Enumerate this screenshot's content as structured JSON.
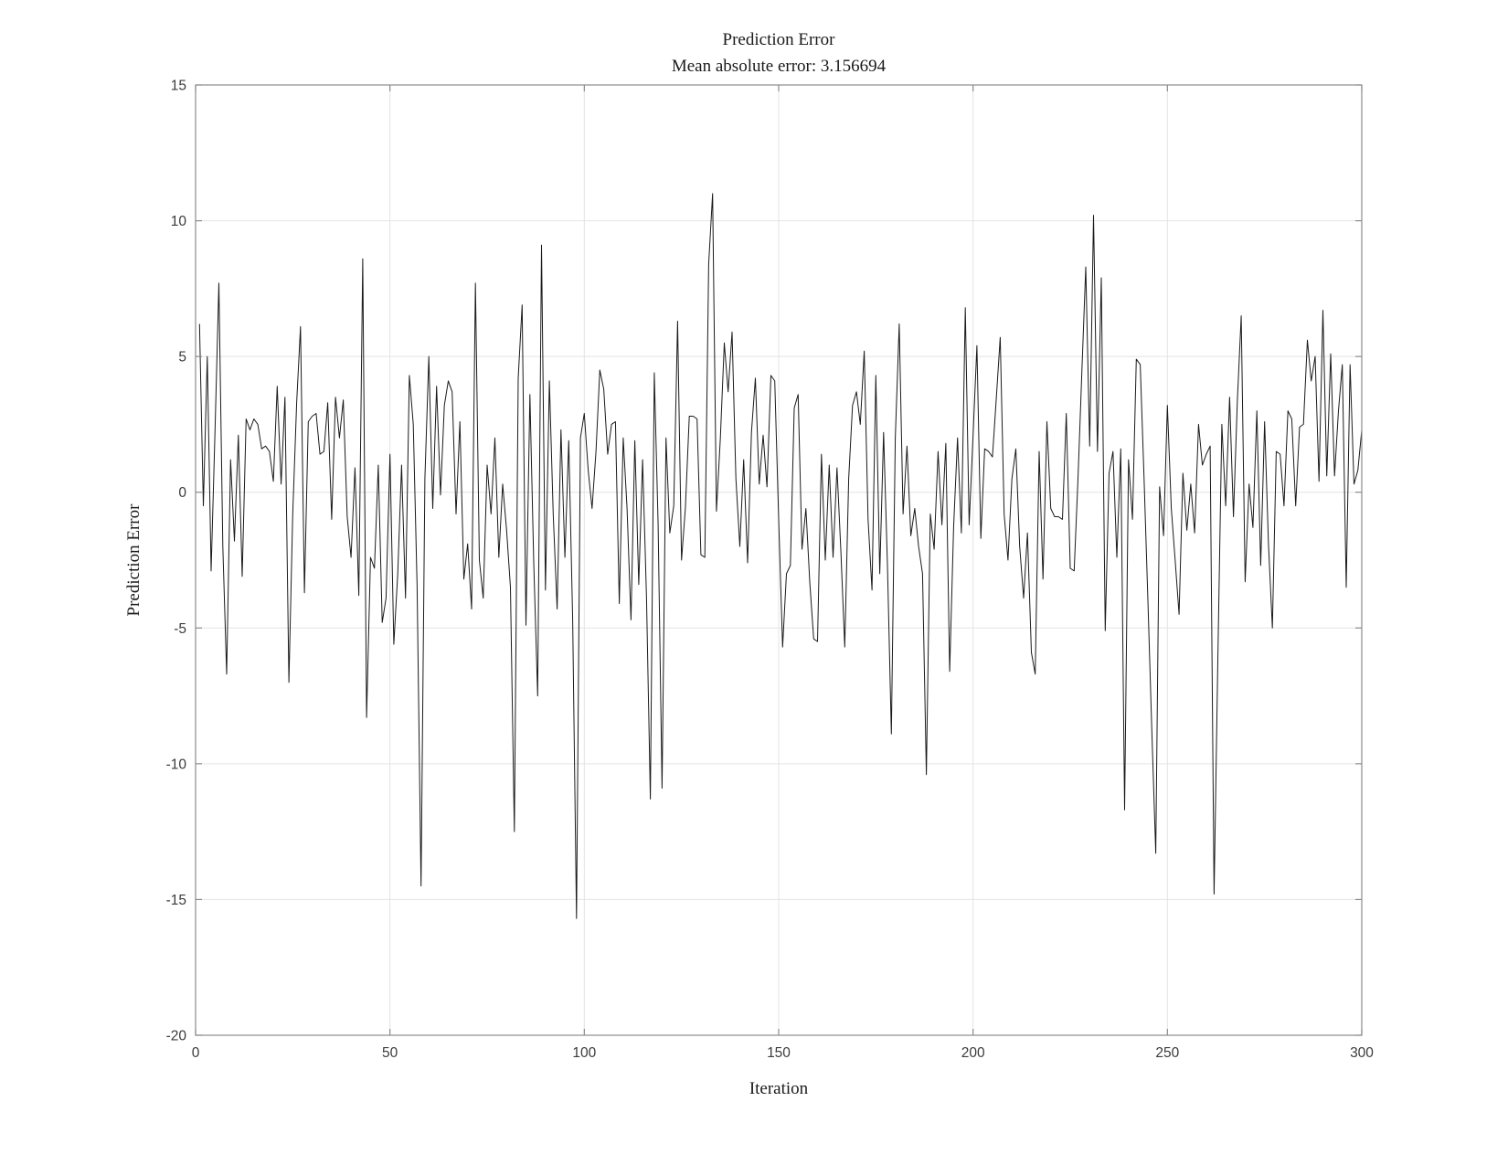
{
  "figure": {
    "background": "#ffffff"
  },
  "chart_data": {
    "type": "line",
    "title": "Prediction Error",
    "subtitle": "Mean absolute error: 3.156694",
    "xlabel": "Iteration",
    "ylabel": "Prediction Error",
    "xlim": [
      0,
      300
    ],
    "ylim": [
      -20,
      15
    ],
    "x_ticks": [
      0,
      50,
      100,
      150,
      200,
      250,
      300
    ],
    "y_ticks": [
      -20,
      -15,
      -10,
      -5,
      0,
      5,
      10,
      15
    ],
    "grid": true,
    "legend": null,
    "line_color": "#1a1a1a",
    "grid_color": "#e4e4e4",
    "axis_color": "#8c8c8c",
    "text_color": "#3b3b3b",
    "x_start": 1,
    "values": [
      6.2,
      -0.5,
      5.0,
      -2.9,
      2.3,
      7.7,
      -2.0,
      -6.7,
      1.2,
      -1.8,
      2.1,
      -3.1,
      2.7,
      2.3,
      2.7,
      2.5,
      1.6,
      1.7,
      1.5,
      0.4,
      3.9,
      0.3,
      3.5,
      -7.0,
      -0.8,
      3.3,
      6.1,
      -3.7,
      2.6,
      2.8,
      2.9,
      1.4,
      1.5,
      3.3,
      -1.0,
      3.5,
      2.0,
      3.4,
      -0.9,
      -2.4,
      0.9,
      -3.8,
      8.6,
      -8.3,
      -2.4,
      -2.8,
      1.0,
      -4.8,
      -3.9,
      1.4,
      -5.6,
      -3.0,
      1.0,
      -3.9,
      4.3,
      2.5,
      -3.5,
      -14.5,
      0.5,
      5.0,
      -0.6,
      3.9,
      -0.1,
      3.2,
      4.1,
      3.7,
      -0.8,
      2.6,
      -3.2,
      -1.9,
      -4.3,
      7.7,
      -2.5,
      -3.9,
      1.0,
      -0.8,
      2.0,
      -2.4,
      0.3,
      -1.4,
      -3.5,
      -12.5,
      4.2,
      6.9,
      -4.9,
      3.6,
      -2.6,
      -7.5,
      9.1,
      -3.6,
      4.1,
      -0.8,
      -4.3,
      2.3,
      -2.4,
      1.9,
      -4.7,
      -15.7,
      2.0,
      2.9,
      0.8,
      -0.6,
      1.5,
      4.5,
      3.8,
      1.4,
      2.5,
      2.6,
      -4.1,
      2.0,
      -0.6,
      -4.7,
      1.9,
      -3.4,
      1.2,
      -3.9,
      -11.3,
      4.4,
      -1.2,
      -10.9,
      2.0,
      -1.5,
      -0.5,
      6.3,
      -2.5,
      -0.6,
      2.8,
      2.8,
      2.7,
      -2.3,
      -2.4,
      8.4,
      11.0,
      -0.7,
      2.0,
      5.5,
      3.7,
      5.9,
      0.5,
      -2.0,
      1.2,
      -2.6,
      2.2,
      4.2,
      0.3,
      2.1,
      0.2,
      4.3,
      4.1,
      -1.0,
      -5.7,
      -3.0,
      -2.7,
      3.1,
      3.6,
      -2.1,
      -0.6,
      -3.3,
      -5.4,
      -5.5,
      1.4,
      -2.5,
      1.0,
      -2.4,
      0.9,
      -2.2,
      -5.7,
      0.5,
      3.2,
      3.7,
      2.5,
      5.2,
      -1.0,
      -3.6,
      4.3,
      -3.0,
      2.2,
      -2.8,
      -8.9,
      2.0,
      6.2,
      -0.8,
      1.7,
      -1.6,
      -0.6,
      -2.0,
      -3.0,
      -10.4,
      -0.8,
      -2.1,
      1.5,
      -1.2,
      1.8,
      -6.6,
      -1.3,
      2.0,
      -1.5,
      6.8,
      -1.2,
      2.1,
      5.4,
      -1.7,
      1.6,
      1.5,
      1.3,
      3.5,
      5.7,
      -0.8,
      -2.5,
      0.5,
      1.6,
      -2.0,
      -3.9,
      -1.5,
      -5.9,
      -6.7,
      1.5,
      -3.2,
      2.6,
      -0.6,
      -0.9,
      -0.9,
      -1.0,
      2.9,
      -2.8,
      -2.9,
      0.5,
      4.5,
      8.3,
      1.7,
      10.2,
      1.5,
      7.9,
      -5.1,
      0.7,
      1.5,
      -2.4,
      1.6,
      -11.7,
      1.2,
      -1.0,
      4.9,
      4.7,
      0.5,
      -4.1,
      -8.8,
      -13.3,
      0.2,
      -1.6,
      3.2,
      -0.6,
      -2.5,
      -4.5,
      0.7,
      -1.4,
      0.3,
      -1.5,
      2.5,
      1.0,
      1.4,
      1.7,
      -14.8,
      -6.0,
      2.5,
      -0.5,
      3.5,
      -0.9,
      3.4,
      6.5,
      -3.3,
      0.3,
      -1.3,
      3.0,
      -2.7,
      2.6,
      -1.9,
      -5.0,
      1.5,
      1.4,
      -0.5,
      3.0,
      2.7,
      -0.5,
      2.4,
      2.5,
      5.6,
      4.1,
      5.0,
      0.4,
      6.7,
      0.6,
      5.1,
      0.6,
      3.0,
      4.7,
      -3.5,
      4.7,
      0.3,
      0.8,
      2.3
    ]
  }
}
